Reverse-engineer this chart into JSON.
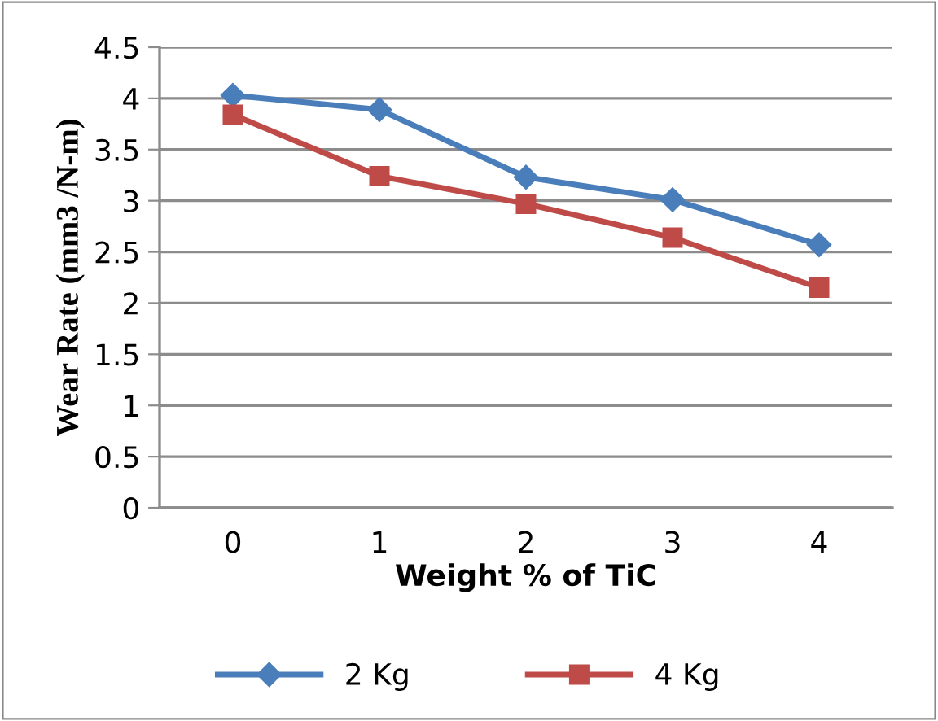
{
  "chart_data": {
    "type": "line",
    "xlabel": "Weight % of TiC",
    "ylabel": "Wear Rate (mm3 /N-m)",
    "categories": [
      "0",
      "1",
      "2",
      "3",
      "4"
    ],
    "series": [
      {
        "name": "2 Kg",
        "color": "#4a7ebb",
        "marker": "diamond",
        "values": [
          4.03,
          3.89,
          3.23,
          3.01,
          2.57
        ]
      },
      {
        "name": "4 Kg",
        "color": "#be4b48",
        "marker": "square",
        "values": [
          3.84,
          3.24,
          2.97,
          2.64,
          2.15
        ]
      }
    ],
    "ylim": [
      0,
      4.5
    ],
    "yticks": [
      0,
      0.5,
      1,
      1.5,
      2,
      2.5,
      3,
      3.5,
      4,
      4.5
    ],
    "grid": "y",
    "legend": "bottom",
    "line_style": "solid"
  }
}
